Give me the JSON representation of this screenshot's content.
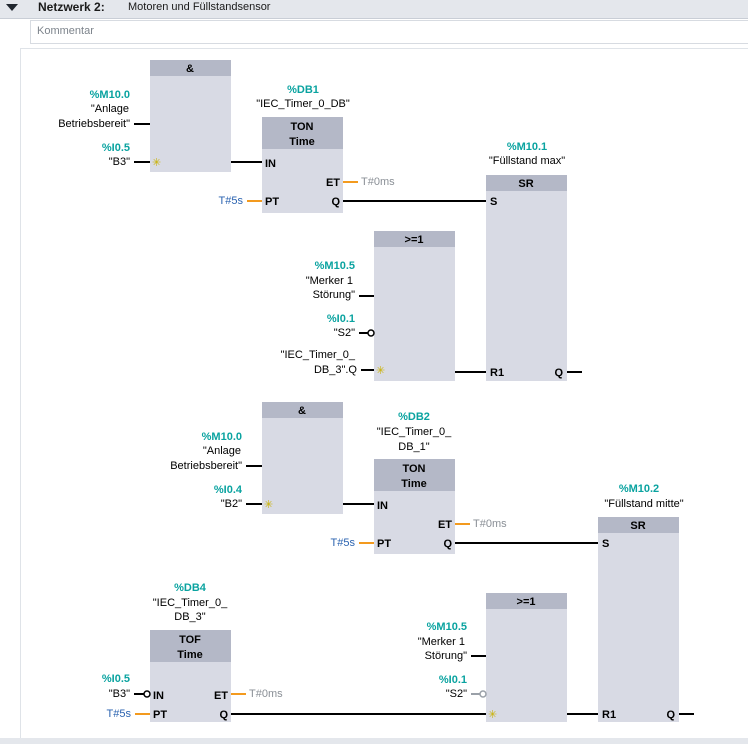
{
  "header": {
    "network_label": "Netzwerk 2:",
    "network_title": "Motoren und Füllstandsensor"
  },
  "comment": {
    "placeholder": "Kommentar"
  },
  "rung1": {
    "and_box": {
      "title": "&"
    },
    "in1": {
      "addr": "%M10.0",
      "sym_1": "\"Anlage",
      "sym_2": "Betriebsbereit\""
    },
    "in2": {
      "addr": "%I0.5",
      "sym": "\"B3\""
    },
    "ton": {
      "instance_addr": "%DB1",
      "instance_name": "\"IEC_Timer_0_DB\"",
      "title": "TON",
      "subtitle": "Time",
      "pin_in": "IN",
      "pin_pt": "PT",
      "pin_et": "ET",
      "pin_q": "Q",
      "pt_value": "T#5s",
      "et_value": "T#0ms"
    },
    "sr": {
      "addr": "%M10.1",
      "name": "\"Füllstand max\"",
      "title": "SR",
      "pin_s": "S",
      "pin_r1": "R1",
      "pin_q": "Q"
    },
    "or_box": {
      "title": ">=1"
    },
    "or_in1": {
      "addr": "%M10.5",
      "sym_1": "\"Merker 1",
      "sym_2": "Störung\""
    },
    "or_in2": {
      "addr": "%I0.1",
      "sym": "\"S2\""
    },
    "or_in3": {
      "sym_1": "\"IEC_Timer_0_",
      "sym_2": "DB_3\".Q"
    }
  },
  "rung2": {
    "and_box": {
      "title": "&"
    },
    "in1": {
      "addr": "%M10.0",
      "sym_1": "\"Anlage",
      "sym_2": "Betriebsbereit\""
    },
    "in2": {
      "addr": "%I0.4",
      "sym": "\"B2\""
    },
    "ton": {
      "instance_addr": "%DB2",
      "instance_name_1": "\"IEC_Timer_0_",
      "instance_name_2": "DB_1\"",
      "title": "TON",
      "subtitle": "Time",
      "pin_in": "IN",
      "pin_pt": "PT",
      "pin_et": "ET",
      "pin_q": "Q",
      "pt_value": "T#5s",
      "et_value": "T#0ms"
    },
    "sr": {
      "addr": "%M10.2",
      "name": "\"Füllstand mitte\"",
      "title": "SR",
      "pin_s": "S",
      "pin_r1": "R1",
      "pin_q": "Q"
    },
    "tof": {
      "instance_addr": "%DB4",
      "instance_name_1": "\"IEC_Timer_0_",
      "instance_name_2": "DB_3\"",
      "title": "TOF",
      "subtitle": "Time",
      "pin_in": "IN",
      "pin_pt": "PT",
      "pin_et": "ET",
      "pin_q": "Q",
      "pt_value": "T#5s",
      "et_value": "T#0ms"
    },
    "tof_in": {
      "addr": "%I0.5",
      "sym": "\"B3\""
    },
    "or_box": {
      "title": ">=1"
    },
    "or_in1": {
      "addr": "%M10.5",
      "sym_1": "\"Merker 1",
      "sym_2": "Störung\""
    },
    "or_in2": {
      "addr": "%I0.1",
      "sym": "\"S2\""
    }
  },
  "colors": {
    "address": "#0aa3a0",
    "constant": "#2b63b0",
    "pin_wire": "#f39a1e",
    "block_fill": "#d8dae4",
    "block_header": "#b4b8c7"
  }
}
